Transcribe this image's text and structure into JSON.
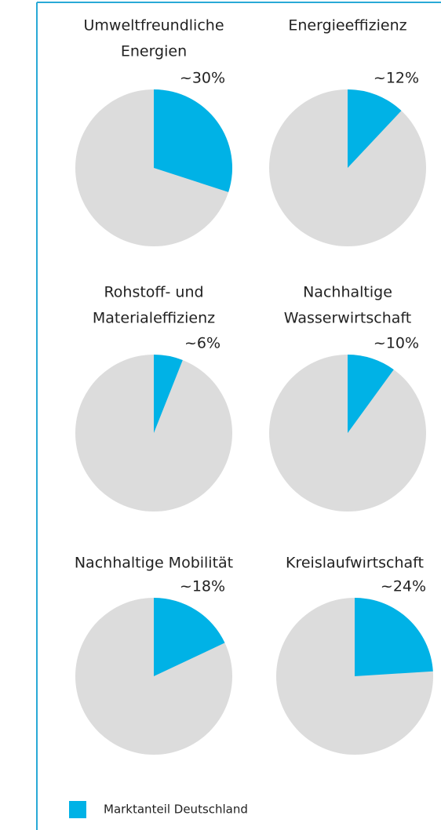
{
  "legend": {
    "name": "Marktanteil Deutschland",
    "color": "#00b2e6"
  },
  "rest_color": "#dcdcdc",
  "chart_data": [
    {
      "type": "pie",
      "title": [
        "Umweltfreundliche",
        "Energien"
      ],
      "values": [
        30
      ],
      "value_labels": [
        "~30%"
      ]
    },
    {
      "type": "pie",
      "title": [
        "Energieeffizienz"
      ],
      "values": [
        12
      ],
      "value_labels": [
        "~12%"
      ]
    },
    {
      "type": "pie",
      "title": [
        "Rohstoff- und",
        "Materialeffizienz"
      ],
      "values": [
        6
      ],
      "value_labels": [
        "~6%"
      ]
    },
    {
      "type": "pie",
      "title": [
        "Nachhaltige",
        "Wasserwirtschaft"
      ],
      "values": [
        10
      ],
      "value_labels": [
        "~10%"
      ]
    },
    {
      "type": "pie",
      "title": [
        "Nachhaltige Mobilität"
      ],
      "values": [
        18
      ],
      "value_labels": [
        "~18%"
      ]
    },
    {
      "type": "pie",
      "title": [
        "Kreislaufwirtschaft"
      ],
      "values": [
        24
      ],
      "value_labels": [
        "~24%"
      ]
    }
  ]
}
